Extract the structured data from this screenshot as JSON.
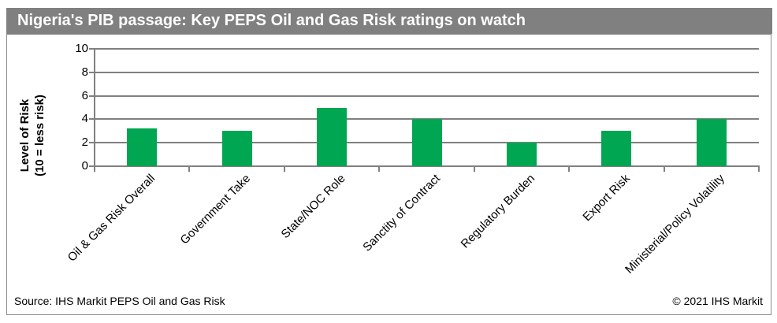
{
  "title": "Nigeria's PIB passage: Key PEPS Oil and Gas Risk ratings on watch",
  "footer": {
    "source": "Source: IHS Markit PEPS Oil and Gas Risk",
    "copyright": "© 2021 IHS Markit"
  },
  "colors": {
    "bar_green": "#00A651",
    "title_bar_bg": "#808080",
    "title_text": "#FFFFFF",
    "grid_gray": "#808080"
  },
  "chart_data": {
    "type": "bar",
    "title": "Nigeria's PIB passage: Key PEPS Oil and Gas Risk ratings on watch",
    "categories": [
      "Oil & Gas Risk Overall",
      "Government Take",
      "State/NOC Role",
      "Sanctity of Contract",
      "Regulatory Burden",
      "Export Risk",
      "Ministerial/Policy Volatility"
    ],
    "values": [
      3.25,
      3,
      5,
      4,
      2,
      3,
      4
    ],
    "ylabel_line1": "Level of Risk",
    "ylabel_line2": "(10 = less risk)",
    "xlabel": "",
    "ylim": [
      0,
      10
    ],
    "yticks": [
      0,
      2,
      4,
      6,
      8,
      10
    ],
    "grid": true,
    "legend": "none",
    "bar_color": "#00A651"
  }
}
